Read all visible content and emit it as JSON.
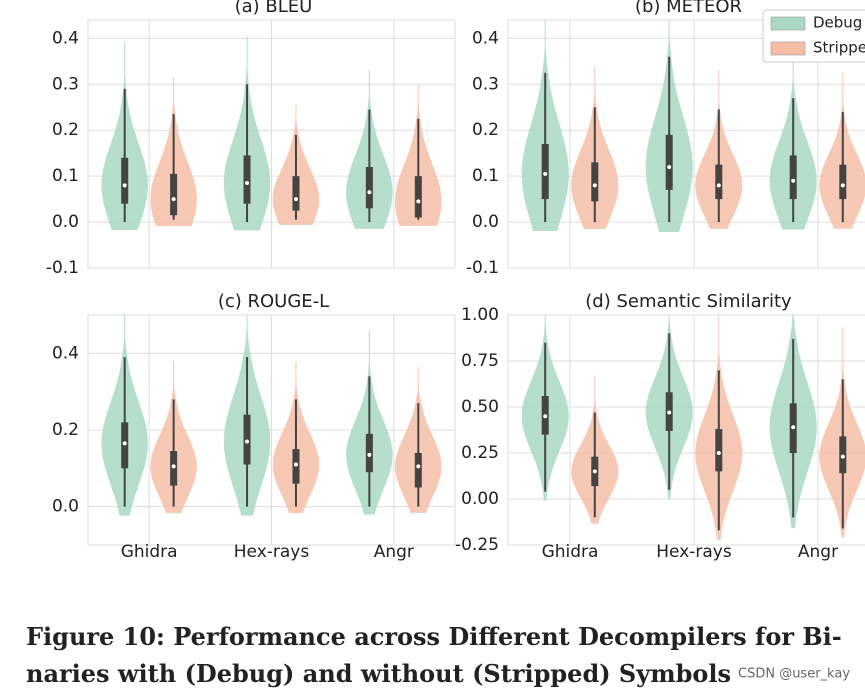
{
  "chart_data": [
    {
      "type": "violin",
      "title": "(a) BLEU",
      "ylim": [
        -0.1,
        0.44
      ],
      "yticks": [
        -0.1,
        {
          "value": 0,
          "label": "0.0"
        },
        0.1,
        0.2,
        0.3,
        0.4
      ],
      "grid": true,
      "series": [
        {
          "name": "Debug",
          "color": "#a9d8c4",
          "min": [
            0,
            0,
            0
          ],
          "q1": [
            0.04,
            0.04,
            0.03
          ],
          "median": [
            0.08,
            0.085,
            0.065
          ],
          "q3": [
            0.14,
            0.145,
            0.12
          ],
          "max": [
            0.29,
            0.3,
            0.245
          ]
        },
        {
          "name": "Stripped",
          "color": "#f6bea6",
          "min": [
            0.005,
            0.005,
            0.005
          ],
          "q1": [
            0.015,
            0.025,
            0.01
          ],
          "median": [
            0.05,
            0.05,
            0.045
          ],
          "q3": [
            0.105,
            0.1,
            0.1
          ],
          "max": [
            0.235,
            0.19,
            0.225
          ]
        }
      ]
    },
    {
      "type": "violin",
      "title": "(b) METEOR",
      "ylim": [
        -0.1,
        0.44
      ],
      "legend": "upper right",
      "yticks": [
        -0.1,
        {
          "value": 0,
          "label": "0.0"
        },
        0.1,
        0.2,
        0.3,
        0.4
      ],
      "grid": true,
      "series": [
        {
          "name": "Debug",
          "color": "#a9d8c4",
          "min": [
            0,
            0,
            0
          ],
          "q1": [
            0.05,
            0.07,
            0.05
          ],
          "median": [
            0.105,
            0.12,
            0.09
          ],
          "q3": [
            0.17,
            0.19,
            0.145
          ],
          "max": [
            0.325,
            0.36,
            0.27
          ]
        },
        {
          "name": "Stripped",
          "color": "#f6bea6",
          "min": [
            0,
            0,
            0
          ],
          "q1": [
            0.045,
            0.05,
            0.05
          ],
          "median": [
            0.08,
            0.08,
            0.08
          ],
          "q3": [
            0.13,
            0.125,
            0.125
          ],
          "max": [
            0.25,
            0.245,
            0.24
          ]
        }
      ]
    },
    {
      "type": "violin",
      "title": "(c) ROUGE-L",
      "ylim": [
        -0.1,
        0.5
      ],
      "categories": [
        "Ghidra",
        "Hex-rays",
        "Angr"
      ],
      "yticks": [
        {
          "value": 0,
          "label": "0.0"
        },
        0.2,
        0.4
      ],
      "grid": true,
      "series": [
        {
          "name": "Debug",
          "color": "#a9d8c4",
          "min": [
            0,
            0,
            0
          ],
          "q1": [
            0.1,
            0.11,
            0.09
          ],
          "median": [
            0.165,
            0.17,
            0.135
          ],
          "q3": [
            0.22,
            0.24,
            0.19
          ],
          "max": [
            0.39,
            0.39,
            0.34
          ]
        },
        {
          "name": "Stripped",
          "color": "#f6bea6",
          "min": [
            0,
            0,
            0
          ],
          "q1": [
            0.055,
            0.06,
            0.05
          ],
          "median": [
            0.105,
            0.11,
            0.105
          ],
          "q3": [
            0.145,
            0.15,
            0.14
          ],
          "max": [
            0.28,
            0.28,
            0.27
          ]
        }
      ]
    },
    {
      "type": "violin",
      "title": "(d) Semantic Similarity",
      "ylim": [
        -0.25,
        1.0
      ],
      "categories": [
        "Ghidra",
        "Hex-rays",
        "Angr"
      ],
      "yticks": [
        -0.25,
        {
          "value": 0,
          "label": "0.00"
        },
        0.25,
        {
          "value": 0.5,
          "label": "0.50"
        },
        0.75,
        {
          "value": 1,
          "label": "1.00"
        }
      ],
      "grid": true,
      "series": [
        {
          "name": "Debug",
          "color": "#a9d8c4",
          "min": [
            0.04,
            0.05,
            -0.1
          ],
          "q1": [
            0.35,
            0.37,
            0.25
          ],
          "median": [
            0.45,
            0.47,
            0.39
          ],
          "q3": [
            0.56,
            0.58,
            0.52
          ],
          "max": [
            0.85,
            0.9,
            0.87
          ]
        },
        {
          "name": "Stripped",
          "color": "#f6bea6",
          "min": [
            -0.1,
            -0.17,
            -0.16
          ],
          "q1": [
            0.07,
            0.15,
            0.14
          ],
          "median": [
            0.15,
            0.25,
            0.23
          ],
          "q3": [
            0.23,
            0.38,
            0.34
          ],
          "max": [
            0.47,
            0.7,
            0.65
          ]
        }
      ]
    }
  ],
  "caption": [
    "Figure 10: Performance across Different Decompilers for Bi-",
    "naries with (Debug) and without (Stripped) Symbols"
  ],
  "watermark": "CSDN @user_kay"
}
